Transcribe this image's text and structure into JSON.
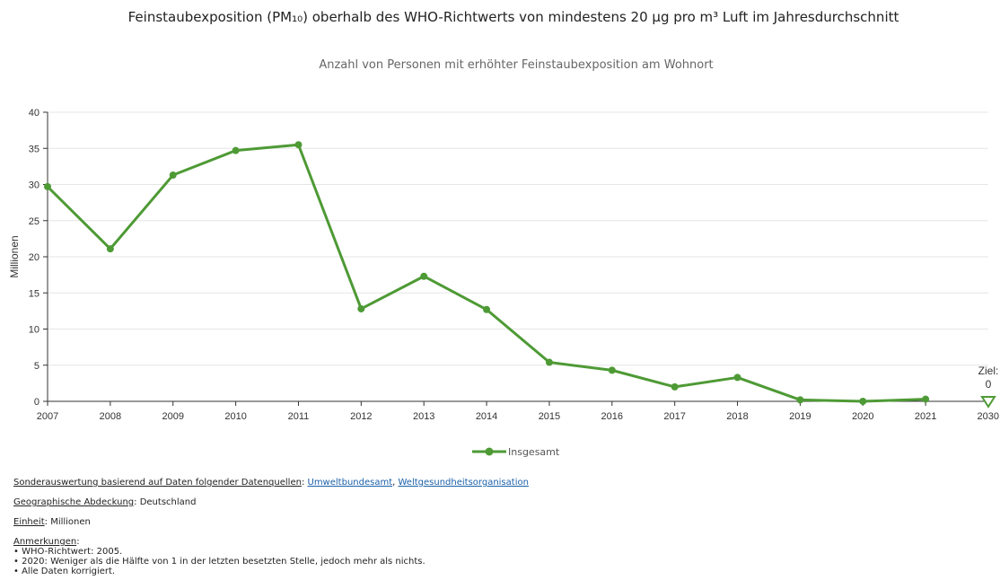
{
  "title": "Feinstaubexposition (PM₁₀) oberhalb des WHO-Richtwerts von mindestens 20 µg pro m³ Luft im Jahresdurchschnitt",
  "subtitle": "Anzahl von Personen mit erhöhter Feinstaubexposition am Wohnort",
  "chart_data": {
    "type": "line",
    "x": [
      2007,
      2008,
      2009,
      2010,
      2011,
      2012,
      2013,
      2014,
      2015,
      2016,
      2017,
      2018,
      2019,
      2020,
      2021
    ],
    "x_ticks": [
      "2007",
      "2008",
      "2009",
      "2010",
      "2011",
      "2012",
      "2013",
      "2014",
      "2015",
      "2016",
      "2017",
      "2018",
      "2019",
      "2020",
      "2021",
      "2030"
    ],
    "xlim": [
      2007,
      2030
    ],
    "y_ticks": [
      "0",
      "5",
      "10",
      "15",
      "20",
      "25",
      "30",
      "35",
      "40"
    ],
    "ylim": [
      0,
      40
    ],
    "ylabel": "Millionen",
    "xlabel": "",
    "grid": true,
    "legend_position": "bottom",
    "series": [
      {
        "name": "Insgesamt",
        "color": "#4e9a35",
        "values": [
          29.7,
          21.1,
          31.3,
          34.7,
          35.5,
          12.8,
          17.3,
          12.7,
          5.4,
          4.3,
          2.0,
          3.3,
          0.2,
          0.0,
          0.3
        ]
      }
    ],
    "target": {
      "label_line1": "Ziel:",
      "label_line2": "0",
      "value": 0,
      "x_category": "2030",
      "color": "#4e9a35"
    }
  },
  "meta": {
    "sources_label": "Sonderauswertung basierend auf Daten folgender Datenquellen",
    "sources_sep": ":",
    "source_1": "Umweltbundesamt",
    "source_comma": ",",
    "source_2": "Weltgesundheitsorganisation",
    "geo_label": "Geographische Abdeckung",
    "geo_value": "Deutschland",
    "unit_label": "Einheit",
    "unit_value": "Millionen",
    "notes_label": "Anmerkungen",
    "notes": [
      "• WHO-Richtwert: 2005.",
      "• 2020: Weniger als die Hälfte von 1 in der letzten besetzten Stelle, jedoch mehr als nichts.",
      "• Alle Daten korrigiert."
    ]
  }
}
